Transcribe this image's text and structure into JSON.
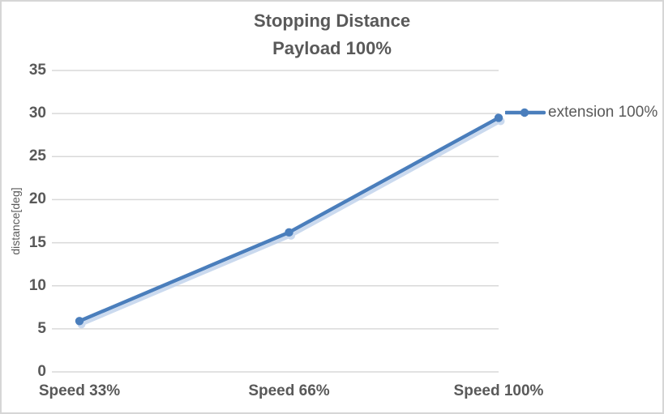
{
  "chart": {
    "title_line1": "Stopping Distance",
    "title_line2": "Payload 100%",
    "y_axis_title": "distance[deg]",
    "legend_label": "extension 100%",
    "colors": {
      "line": "#4a7ebc",
      "line_shadow": "#b9cde9",
      "grid": "#d9d9d9",
      "text": "#595959",
      "border": "#d6d6d6"
    }
  },
  "chart_data": {
    "type": "line",
    "title": "Stopping Distance Payload 100%",
    "categories": [
      "Speed 33%",
      "Speed 66%",
      "Speed 100%"
    ],
    "series": [
      {
        "name": "extension 100%",
        "values": [
          5.9,
          16.2,
          29.5
        ]
      }
    ],
    "xlabel": "",
    "ylabel": "distance[deg]",
    "ylim": [
      0,
      35
    ],
    "yticks": [
      0,
      5,
      10,
      15,
      20,
      25,
      30,
      35
    ],
    "grid": true,
    "legend_position": "right",
    "marker": "circle"
  }
}
